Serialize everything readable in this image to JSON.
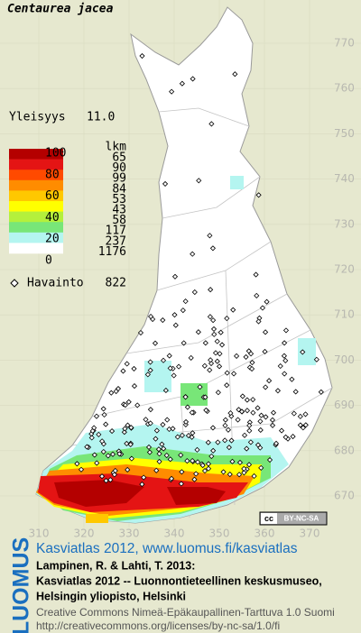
{
  "title": "Centaurea jacea",
  "frequency": {
    "label": "Yleisyys",
    "value": "11.0"
  },
  "legend": {
    "unit": "lkm",
    "scale_labels": [
      "100",
      "80",
      "60",
      "40",
      "20",
      "0"
    ],
    "classes": [
      {
        "color": "#b40000",
        "count": 65
      },
      {
        "color": "#e41414",
        "count": 90
      },
      {
        "color": "#ff4a00",
        "count": 99
      },
      {
        "color": "#ff8c00",
        "count": 84
      },
      {
        "color": "#ffc800",
        "count": 53
      },
      {
        "color": "#ffff00",
        "count": 43
      },
      {
        "color": "#b4f03c",
        "count": 58
      },
      {
        "color": "#78e678",
        "count": 117
      },
      {
        "color": "#b4f5f0",
        "count": 237
      },
      {
        "color": "#ffffff",
        "count": 1176
      }
    ]
  },
  "observations": {
    "label": "Havainto",
    "count": 822
  },
  "grid": {
    "north_labels": [
      "770",
      "760",
      "750",
      "740",
      "730",
      "720",
      "710",
      "700",
      "690",
      "680",
      "670"
    ],
    "east_labels": [
      "310",
      "320",
      "330",
      "340",
      "350",
      "360",
      "370"
    ]
  },
  "license_badge": {
    "icon": "cc",
    "text": "BY-NC-SA"
  },
  "logo": "LUOMUS",
  "footer": {
    "link": "Kasviatlas 2012, www.luomus.fi/kasviatlas",
    "citation": [
      "Lampinen, R. & Lahti, T. 2013:",
      "Kasviatlas 2012 -- Luonnontieteellinen keskusmuseo,",
      "Helsingin yliopisto, Helsinki"
    ],
    "license": [
      "Creative Commons Nimeä-Epäkaupallinen-Tarttuva 1.0 Suomi",
      "http://creativecommons.org/licenses/by-nc-sa/1.0/fi"
    ]
  }
}
